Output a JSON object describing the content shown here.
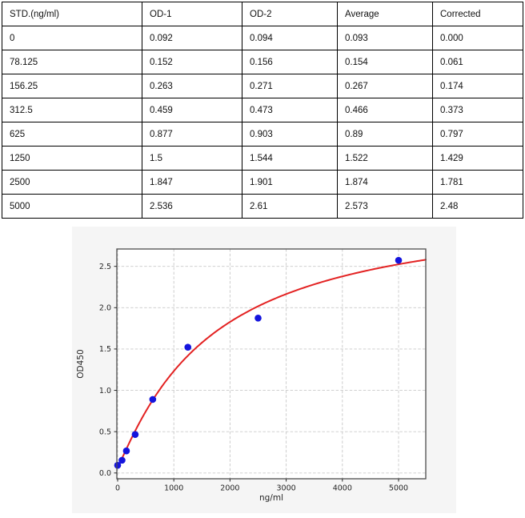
{
  "table": {
    "columns": [
      "STD.(ng/ml)",
      "OD-1",
      "OD-2",
      "Average",
      "Corrected"
    ],
    "rows": [
      [
        "0",
        "0.092",
        "0.094",
        "0.093",
        "0.000"
      ],
      [
        "78.125",
        "0.152",
        "0.156",
        "0.154",
        "0.061"
      ],
      [
        "156.25",
        "0.263",
        "0.271",
        "0.267",
        "0.174"
      ],
      [
        "312.5",
        "0.459",
        "0.473",
        "0.466",
        "0.373"
      ],
      [
        "625",
        "0.877",
        "0.903",
        "0.89",
        "0.797"
      ],
      [
        "1250",
        "1.5",
        "1.544",
        "1.522",
        "1.429"
      ],
      [
        "2500",
        "1.847",
        "1.901",
        "1.874",
        "1.781"
      ],
      [
        "5000",
        "2.536",
        "2.61",
        "2.573",
        "2.48"
      ]
    ]
  },
  "chart_data": {
    "type": "scatter",
    "title": "",
    "xlabel": "ng/ml",
    "ylabel": "OD450",
    "x": [
      0,
      78.125,
      156.25,
      312.5,
      625,
      1250,
      2500,
      5000
    ],
    "y": [
      0.093,
      0.154,
      0.267,
      0.466,
      0.89,
      1.522,
      1.874,
      2.573
    ],
    "fit": {
      "model": "4PL",
      "a": 0.07,
      "b": 1.1,
      "c": 1650,
      "d": 3.25
    },
    "xticks": [
      0,
      1000,
      2000,
      3000,
      4000,
      5000
    ],
    "xtick_labels": [
      "0",
      "1000",
      "2000",
      "3000",
      "4000",
      "5000"
    ],
    "yticks": [
      0.0,
      0.5,
      1.0,
      1.5,
      2.0,
      2.5
    ],
    "ytick_labels": [
      "0.0",
      "0.5",
      "1.0",
      "1.5",
      "2.0",
      "2.5"
    ],
    "xlim": [
      -14,
      5484
    ],
    "ylim": [
      -0.07,
      2.71
    ],
    "grid": true,
    "legend": "none",
    "colors": {
      "marker": "#1414dd",
      "curve": "#e32222",
      "grid": "#c9c9c9",
      "spine": "#4c4c4c",
      "figure_bg": "#f5f5f5",
      "plot_bg": "#ffffff",
      "tick_text": "#262626"
    }
  }
}
